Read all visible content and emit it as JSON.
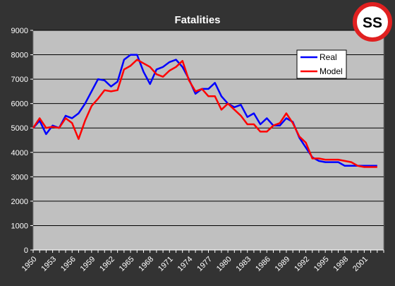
{
  "chart_data": {
    "type": "line",
    "title": "Fatalities",
    "xlabel": "",
    "ylabel": "",
    "ylim": [
      0,
      9000
    ],
    "yticks": [
      0,
      1000,
      2000,
      3000,
      4000,
      5000,
      6000,
      7000,
      8000,
      9000
    ],
    "xlim": [
      1950,
      2004
    ],
    "xticks": [
      1950,
      1953,
      1956,
      1959,
      1962,
      1965,
      1968,
      1971,
      1974,
      1977,
      1980,
      1983,
      1986,
      1989,
      1992,
      1995,
      1998,
      2001
    ],
    "grid": true,
    "legend_position": "top-right",
    "series": [
      {
        "name": "Real",
        "color": "#0000ff",
        "points": [
          [
            1950,
            5000
          ],
          [
            1951,
            5300
          ],
          [
            1952,
            4750
          ],
          [
            1953,
            5100
          ],
          [
            1954,
            5000
          ],
          [
            1955,
            5500
          ],
          [
            1956,
            5400
          ],
          [
            1957,
            5600
          ],
          [
            1958,
            6000
          ],
          [
            1959,
            6500
          ],
          [
            1960,
            7000
          ],
          [
            1961,
            6950
          ],
          [
            1962,
            6700
          ],
          [
            1963,
            6900
          ],
          [
            1964,
            7800
          ],
          [
            1965,
            8000
          ],
          [
            1966,
            8000
          ],
          [
            1967,
            7300
          ],
          [
            1968,
            6800
          ],
          [
            1969,
            7400
          ],
          [
            1970,
            7500
          ],
          [
            1971,
            7700
          ],
          [
            1972,
            7800
          ],
          [
            1973,
            7500
          ],
          [
            1974,
            7000
          ],
          [
            1975,
            6400
          ],
          [
            1976,
            6600
          ],
          [
            1977,
            6600
          ],
          [
            1978,
            6850
          ],
          [
            1979,
            6300
          ],
          [
            1980,
            6000
          ],
          [
            1981,
            5850
          ],
          [
            1982,
            5950
          ],
          [
            1983,
            5450
          ],
          [
            1984,
            5600
          ],
          [
            1985,
            5150
          ],
          [
            1986,
            5400
          ],
          [
            1987,
            5100
          ],
          [
            1988,
            5100
          ],
          [
            1989,
            5400
          ],
          [
            1990,
            5250
          ],
          [
            1991,
            4600
          ],
          [
            1992,
            4200
          ],
          [
            1993,
            3800
          ],
          [
            1994,
            3650
          ],
          [
            1995,
            3600
          ],
          [
            1996,
            3600
          ],
          [
            1997,
            3600
          ],
          [
            1998,
            3450
          ],
          [
            1999,
            3450
          ],
          [
            2000,
            3450
          ],
          [
            2001,
            3450
          ],
          [
            2002,
            3450
          ],
          [
            2003,
            3450
          ]
        ]
      },
      {
        "name": "Model",
        "color": "#ff0000",
        "points": [
          [
            1950,
            5000
          ],
          [
            1951,
            5400
          ],
          [
            1952,
            5000
          ],
          [
            1953,
            5050
          ],
          [
            1954,
            5000
          ],
          [
            1955,
            5400
          ],
          [
            1956,
            5200
          ],
          [
            1957,
            4550
          ],
          [
            1958,
            5300
          ],
          [
            1959,
            5900
          ],
          [
            1960,
            6200
          ],
          [
            1961,
            6550
          ],
          [
            1962,
            6500
          ],
          [
            1963,
            6550
          ],
          [
            1964,
            7400
          ],
          [
            1965,
            7550
          ],
          [
            1966,
            7800
          ],
          [
            1967,
            7650
          ],
          [
            1968,
            7500
          ],
          [
            1969,
            7200
          ],
          [
            1970,
            7100
          ],
          [
            1971,
            7350
          ],
          [
            1972,
            7500
          ],
          [
            1973,
            7750
          ],
          [
            1974,
            6950
          ],
          [
            1975,
            6500
          ],
          [
            1976,
            6600
          ],
          [
            1977,
            6300
          ],
          [
            1978,
            6300
          ],
          [
            1979,
            5750
          ],
          [
            1980,
            6000
          ],
          [
            1981,
            5750
          ],
          [
            1982,
            5500
          ],
          [
            1983,
            5150
          ],
          [
            1984,
            5150
          ],
          [
            1985,
            4850
          ],
          [
            1986,
            4850
          ],
          [
            1987,
            5100
          ],
          [
            1988,
            5200
          ],
          [
            1989,
            5600
          ],
          [
            1990,
            5200
          ],
          [
            1991,
            4650
          ],
          [
            1992,
            4400
          ],
          [
            1993,
            3750
          ],
          [
            1994,
            3750
          ],
          [
            1995,
            3700
          ],
          [
            1996,
            3700
          ],
          [
            1997,
            3700
          ],
          [
            1998,
            3650
          ],
          [
            1999,
            3600
          ],
          [
            2000,
            3450
          ],
          [
            2001,
            3400
          ],
          [
            2002,
            3400
          ],
          [
            2003,
            3400
          ]
        ]
      }
    ]
  },
  "badge": {
    "text": "SS",
    "ring_color": "#e02020"
  }
}
